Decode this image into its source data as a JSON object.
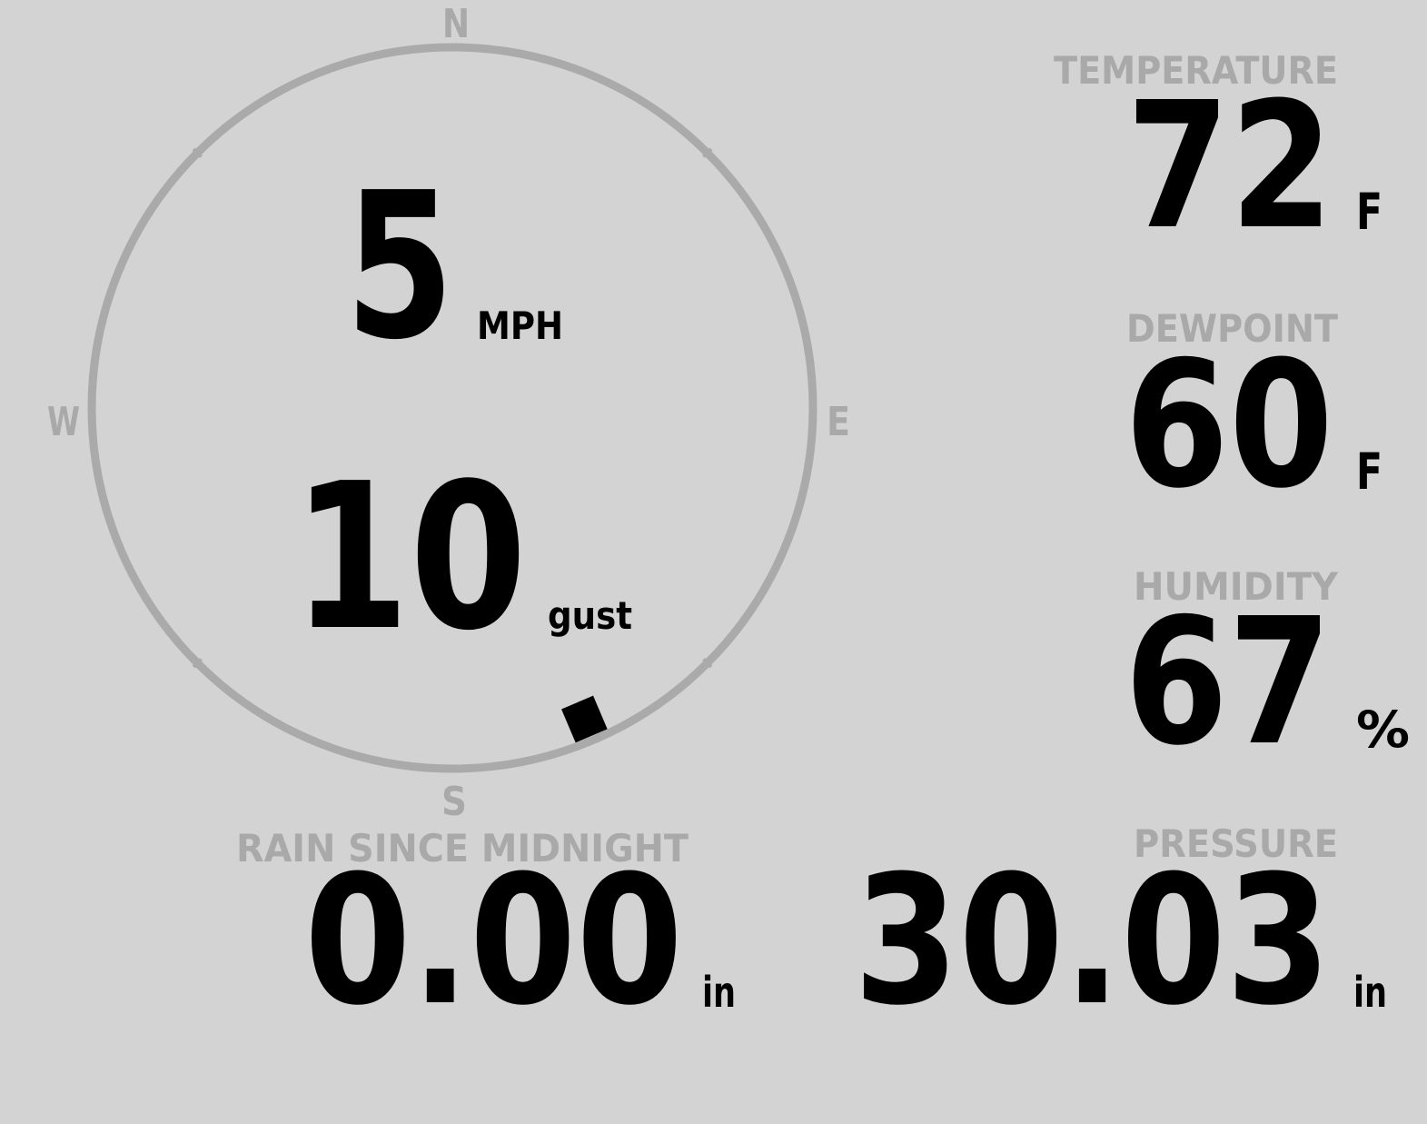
{
  "colors": {
    "background": "#d3d3d3",
    "label": "#a9a9a9",
    "ring": "#aaaaaa",
    "value": "#000000"
  },
  "compass": {
    "north": "N",
    "east": "E",
    "south": "S",
    "west": "W",
    "wind_direction_deg": 157,
    "wind_speed": "5",
    "wind_speed_unit": "MPH",
    "gust": "10",
    "gust_label": "gust"
  },
  "temperature": {
    "label": "TEMPERATURE",
    "value": "72",
    "unit": "F"
  },
  "dewpoint": {
    "label": "DEWPOINT",
    "value": "60",
    "unit": "F"
  },
  "humidity": {
    "label": "HUMIDITY",
    "value": "67",
    "unit": "%"
  },
  "rain": {
    "label": "RAIN SINCE MIDNIGHT",
    "value": "0.00",
    "unit": "in"
  },
  "pressure": {
    "label": "PRESSURE",
    "value": "30.03",
    "unit": "in"
  }
}
